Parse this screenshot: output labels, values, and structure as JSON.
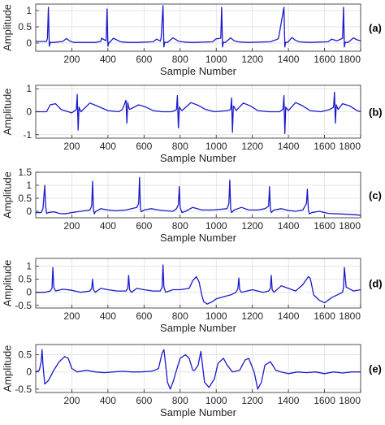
{
  "colors": {
    "trace": "#1a1acc",
    "grid": "#dcdcdc",
    "axis": "#262626"
  },
  "chart_data": [
    {
      "type": "line",
      "panel_label": "(a)",
      "xlabel": "Sample Number",
      "ylabel": "Amplitude",
      "xlim": [
        0,
        1800
      ],
      "ylim": [
        -0.25,
        1.2
      ],
      "grid": true,
      "xticks": [
        200,
        400,
        600,
        800,
        1000,
        1200,
        1400,
        1600,
        1800
      ],
      "yticks": [
        0,
        0.5,
        1
      ],
      "ytick_labels": [
        "0",
        "0.5",
        "1"
      ],
      "series": [
        {
          "x": [
            0,
            60,
            65,
            70,
            75,
            80,
            85,
            100,
            150,
            170,
            190,
            210,
            250,
            330,
            360,
            365,
            390,
            395,
            400,
            405,
            410,
            430,
            470,
            490,
            510,
            530,
            570,
            650,
            670,
            690,
            695,
            705,
            710,
            715,
            720,
            730,
            760,
            790,
            810,
            830,
            850,
            880,
            980,
            1000,
            1025,
            1030,
            1035,
            1040,
            1045,
            1050,
            1080,
            1100,
            1120,
            1140,
            1180,
            1300,
            1340,
            1345,
            1375,
            1380,
            1385,
            1390,
            1395,
            1420,
            1440,
            1460,
            1480,
            1520,
            1620,
            1640,
            1670,
            1700,
            1705,
            1710,
            1715,
            1720,
            1730,
            1760,
            1780,
            1800
          ],
          "y": [
            0.05,
            0.05,
            0.15,
            1.1,
            -0.1,
            0.02,
            0.02,
            0.02,
            0.05,
            0.14,
            0.06,
            0.02,
            0.02,
            0.02,
            0.05,
            0.15,
            0.07,
            1.05,
            -0.1,
            0.02,
            0.02,
            0.15,
            0.04,
            0.03,
            0.02,
            0.02,
            0.02,
            0.04,
            0.12,
            0.06,
            0.15,
            1.15,
            -0.12,
            0.03,
            0.02,
            0.02,
            0.16,
            0.06,
            0.04,
            0.03,
            0.02,
            0.02,
            0.04,
            0.13,
            0.15,
            1.1,
            -0.12,
            0.03,
            0.02,
            0.02,
            0.16,
            0.07,
            0.04,
            0.03,
            0.02,
            0.04,
            0.12,
            0.15,
            1.1,
            -0.12,
            0.03,
            0.02,
            0.02,
            0.17,
            0.08,
            0.04,
            0.03,
            0.02,
            0.04,
            0.12,
            0.07,
            0.15,
            1.1,
            -0.12,
            0.03,
            0.02,
            0.02,
            0.16,
            0.1,
            0.07
          ]
        }
      ]
    },
    {
      "type": "line",
      "panel_label": "(b)",
      "xlabel": "Sample Number",
      "ylabel": "Amplitude",
      "xlim": [
        0,
        1800
      ],
      "ylim": [
        -1.15,
        1.15
      ],
      "grid": true,
      "xticks": [
        200,
        400,
        600,
        800,
        1000,
        1200,
        1400,
        1600,
        1800
      ],
      "yticks": [
        -1,
        0,
        1
      ],
      "ytick_labels": [
        "-1",
        "0",
        "1"
      ],
      "series": [
        {
          "x": [
            0,
            60,
            80,
            110,
            140,
            200,
            225,
            230,
            235,
            240,
            245,
            250,
            300,
            340,
            400,
            460,
            480,
            500,
            505,
            510,
            515,
            520,
            570,
            610,
            650,
            700,
            750,
            770,
            780,
            785,
            790,
            795,
            800,
            810,
            860,
            900,
            940,
            990,
            1060,
            1080,
            1085,
            1090,
            1095,
            1100,
            1110,
            1150,
            1190,
            1230,
            1290,
            1350,
            1370,
            1375,
            1380,
            1385,
            1390,
            1400,
            1440,
            1480,
            1520,
            1580,
            1630,
            1650,
            1655,
            1660,
            1665,
            1670,
            1675,
            1700,
            1740,
            1780,
            1800
          ],
          "y": [
            0,
            0,
            0.3,
            0.35,
            0.1,
            -0.05,
            0.1,
            0.75,
            -0.8,
            0.2,
            0.1,
            0,
            0.38,
            0.25,
            0.05,
            0,
            0.1,
            0.5,
            -0.5,
            0.4,
            0.2,
            0.1,
            0.3,
            0.2,
            0.05,
            0,
            0,
            0.05,
            0.1,
            0.7,
            -0.7,
            0.2,
            0.15,
            0.05,
            0.4,
            0.28,
            0.1,
            0,
            0.05,
            0.1,
            0.6,
            -0.9,
            0.25,
            0.2,
            0.05,
            0.38,
            0.25,
            0.05,
            0,
            0,
            0.1,
            0.7,
            -0.95,
            0.2,
            0.15,
            0.05,
            0.4,
            0.25,
            0.05,
            0,
            0.1,
            0.2,
            0.85,
            -0.5,
            0.3,
            0.2,
            0.1,
            0.35,
            0.25,
            0.05,
            0
          ]
        }
      ]
    },
    {
      "type": "line",
      "panel_label": "(c)",
      "xlabel": "Sample Number",
      "ylabel": "Amplitude",
      "xlim": [
        0,
        1800
      ],
      "ylim": [
        -0.25,
        1.5
      ],
      "grid": true,
      "xticks": [
        200,
        400,
        600,
        800,
        1000,
        1200,
        1400,
        1600,
        1800
      ],
      "yticks": [
        0,
        0.5,
        1,
        1.5
      ],
      "ytick_labels": [
        "0",
        "0.5",
        "1",
        "1.5"
      ],
      "series": [
        {
          "x": [
            0,
            30,
            40,
            50,
            55,
            60,
            70,
            100,
            130,
            160,
            200,
            250,
            300,
            310,
            315,
            320,
            325,
            330,
            360,
            400,
            440,
            500,
            560,
            570,
            575,
            580,
            585,
            600,
            640,
            680,
            720,
            760,
            780,
            790,
            795,
            800,
            810,
            830,
            870,
            920,
            980,
            1060,
            1070,
            1075,
            1080,
            1085,
            1100,
            1140,
            1180,
            1230,
            1270,
            1290,
            1295,
            1300,
            1305,
            1320,
            1360,
            1400,
            1440,
            1480,
            1500,
            1505,
            1510,
            1515,
            1530,
            1570,
            1620,
            1680,
            1740,
            1800
          ],
          "y": [
            -0.05,
            -0.05,
            0.1,
            1.0,
            0.2,
            -0.08,
            -0.05,
            -0.02,
            -0.08,
            -0.1,
            -0.05,
            0,
            0.05,
            0.2,
            1.15,
            0.05,
            -0.1,
            -0.02,
            0.1,
            0.05,
            0.02,
            0.05,
            0.15,
            0.3,
            1.3,
            0.1,
            -0.02,
            0.05,
            0.1,
            0.05,
            0.02,
            0,
            0.1,
            0.25,
            0.95,
            0.15,
            -0.05,
            0,
            0.15,
            0.05,
            0.05,
            0.1,
            0.3,
            1.2,
            0.1,
            -0.05,
            0.05,
            0.15,
            0.05,
            0.05,
            0.1,
            0.2,
            0.95,
            0.1,
            -0.05,
            0.05,
            0.1,
            0.03,
            0,
            0.05,
            0.3,
            0.85,
            0.1,
            -0.1,
            -0.05,
            0,
            -0.08,
            -0.1,
            -0.12,
            -0.15
          ]
        }
      ]
    },
    {
      "type": "line",
      "panel_label": "(d)",
      "xlabel": "Sample Number",
      "ylabel": "Amplitude",
      "xlim": [
        0,
        1800
      ],
      "ylim": [
        -0.6,
        1.3
      ],
      "grid": true,
      "xticks": [
        200,
        400,
        600,
        800,
        1000,
        1200,
        1400,
        1600,
        1800
      ],
      "yticks": [
        -0.5,
        0,
        0.5,
        1
      ],
      "ytick_labels": [
        "-0.5",
        "0",
        "0.5",
        "1"
      ],
      "series": [
        {
          "x": [
            0,
            50,
            80,
            90,
            95,
            100,
            110,
            150,
            200,
            250,
            300,
            310,
            315,
            320,
            330,
            360,
            400,
            450,
            500,
            510,
            515,
            520,
            530,
            560,
            600,
            650,
            690,
            700,
            705,
            710,
            720,
            760,
            800,
            850,
            870,
            890,
            905,
            920,
            930,
            950,
            980,
            1000,
            1050,
            1080,
            1110,
            1120,
            1125,
            1130,
            1140,
            1200,
            1260,
            1290,
            1300,
            1305,
            1310,
            1320,
            1360,
            1400,
            1440,
            1480,
            1510,
            1520,
            1525,
            1540,
            1570,
            1600,
            1640,
            1700,
            1705,
            1710,
            1720,
            1760,
            1800
          ],
          "y": [
            0,
            0,
            0.05,
            0.15,
            0.95,
            0.2,
            0.05,
            0.12,
            0.08,
            0,
            0.05,
            0.15,
            0.5,
            0.1,
            0,
            0.15,
            0.1,
            0.05,
            0.05,
            0.15,
            0.65,
            0.1,
            0,
            0.15,
            0.1,
            0.05,
            0.05,
            0.2,
            1.05,
            0.2,
            0,
            0.1,
            0.1,
            0.15,
            0.45,
            0.6,
            0.4,
            -0.1,
            -0.35,
            -0.45,
            -0.35,
            -0.25,
            -0.15,
            -0.1,
            0,
            0.15,
            0.55,
            0.1,
            0,
            0.1,
            0,
            0.05,
            0.15,
            0.65,
            0.1,
            0,
            0.25,
            0.15,
            0.05,
            0.3,
            0.6,
            0.55,
            0.4,
            -0.1,
            -0.3,
            -0.4,
            -0.2,
            0,
            0.2,
            0.95,
            0.2,
            0.05,
            0.1
          ]
        }
      ]
    },
    {
      "type": "line",
      "panel_label": "(e)",
      "xlabel": "Sample Number",
      "ylabel": "Amplitude",
      "xlim": [
        0,
        1800
      ],
      "ylim": [
        -0.6,
        0.8
      ],
      "grid": true,
      "xticks": [
        200,
        400,
        600,
        800,
        1000,
        1200,
        1400,
        1600,
        1800
      ],
      "yticks": [
        -0.5,
        0,
        0.5
      ],
      "ytick_labels": [
        "-0.5",
        "0",
        "0.5"
      ],
      "series": [
        {
          "x": [
            0,
            20,
            30,
            35,
            40,
            50,
            70,
            100,
            130,
            160,
            180,
            200,
            230,
            280,
            330,
            380,
            430,
            480,
            530,
            580,
            640,
            660,
            680,
            700,
            710,
            720,
            730,
            745,
            760,
            780,
            800,
            830,
            850,
            870,
            880,
            900,
            915,
            935,
            960,
            990,
            1010,
            1040,
            1060,
            1090,
            1130,
            1160,
            1180,
            1210,
            1230,
            1250,
            1270,
            1300,
            1330,
            1360,
            1400,
            1450,
            1500,
            1550,
            1600,
            1650,
            1700,
            1750,
            1800
          ],
          "y": [
            0,
            0.05,
            0.3,
            0.65,
            0.2,
            -0.35,
            -0.25,
            0.05,
            0.3,
            0.45,
            0.4,
            0.1,
            0,
            0.05,
            0,
            -0.02,
            0,
            0.02,
            0,
            0,
            0.02,
            0.05,
            0.1,
            0.55,
            0.65,
            0.2,
            -0.3,
            -0.5,
            -0.3,
            0.05,
            0.4,
            0.5,
            0.4,
            0.05,
            0.05,
            0.2,
            0.6,
            -0.3,
            -0.45,
            -0.2,
            0.25,
            0.4,
            0.2,
            0,
            0.05,
            0.35,
            0.4,
            0,
            -0.5,
            -0.3,
            0.2,
            0.3,
            0.05,
            0,
            -0.05,
            0,
            -0.02,
            0,
            -0.05,
            0,
            -0.03,
            0,
            0
          ]
        }
      ]
    }
  ]
}
